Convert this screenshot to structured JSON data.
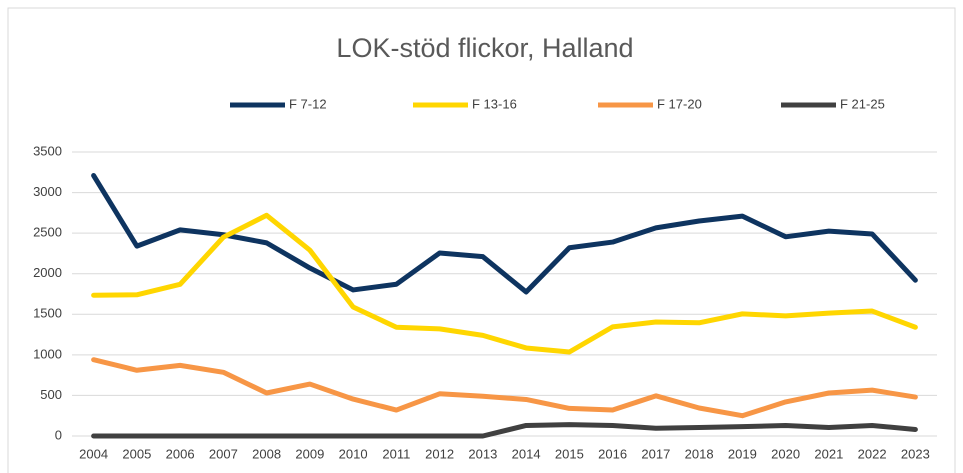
{
  "chart_data": {
    "type": "line",
    "title": "LOK-stöd flickor, Halland",
    "categories": [
      "2004",
      "2005",
      "2006",
      "2007",
      "2008",
      "2009",
      "2010",
      "2011",
      "2012",
      "2013",
      "2014",
      "2015",
      "2016",
      "2017",
      "2018",
      "2019",
      "2020",
      "2021",
      "2022",
      "2023"
    ],
    "series": [
      {
        "name": "F 7-12",
        "color": "#0e3460",
        "values": [
          3210,
          2340,
          2540,
          2480,
          2380,
          2070,
          1800,
          1870,
          2255,
          2210,
          1775,
          2320,
          2390,
          2565,
          2650,
          2710,
          2455,
          2525,
          2490,
          1920
        ]
      },
      {
        "name": "F 13-16",
        "color": "#ffd600",
        "values": [
          1735,
          1740,
          1870,
          2450,
          2720,
          2290,
          1590,
          1340,
          1320,
          1240,
          1085,
          1035,
          1345,
          1405,
          1395,
          1505,
          1480,
          1515,
          1540,
          1340
        ]
      },
      {
        "name": "F 17-20",
        "color": "#f79646",
        "values": [
          940,
          810,
          870,
          785,
          530,
          640,
          455,
          320,
          520,
          490,
          450,
          340,
          320,
          495,
          345,
          250,
          420,
          530,
          565,
          480
        ]
      },
      {
        "name": "F 21-25",
        "color": "#404040",
        "values": [
          0,
          0,
          0,
          0,
          0,
          0,
          0,
          0,
          0,
          0,
          130,
          140,
          130,
          95,
          105,
          115,
          130,
          105,
          130,
          80
        ]
      }
    ],
    "ylim": [
      0,
      3500
    ],
    "yticks": [
      0,
      500,
      1000,
      1500,
      2000,
      2500,
      3000,
      3500
    ],
    "grid": true,
    "legend": "top"
  }
}
